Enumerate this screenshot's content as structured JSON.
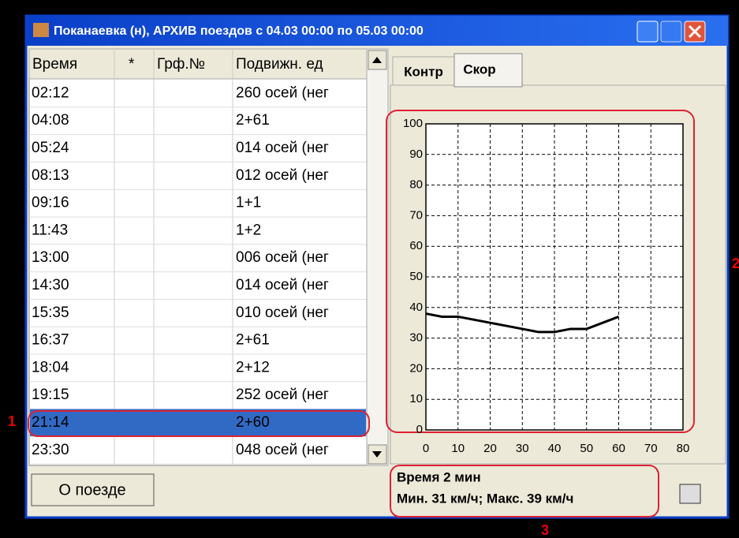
{
  "window": {
    "title": "Поканаевка (н), АРХИВ поездов с 04.03 00:00 по 05.03 00:00"
  },
  "table": {
    "columns": [
      "Время",
      "*",
      "Грф.№",
      "Подвижн. ед"
    ],
    "rows": [
      [
        "02:12",
        "260 осей (нег"
      ],
      [
        "04:08",
        "2+61"
      ],
      [
        "05:24",
        "014 осей (нег"
      ],
      [
        "08:13",
        "012 осей (нег"
      ],
      [
        "09:16",
        "1+1"
      ],
      [
        "11:43",
        "1+2"
      ],
      [
        "13:00",
        "006 осей (нег"
      ],
      [
        "14:30",
        "014 осей (нег"
      ],
      [
        "15:35",
        "010 осей (нег"
      ],
      [
        "16:37",
        "2+61"
      ],
      [
        "18:04",
        "2+12"
      ],
      [
        "19:15",
        "252 осей (нег"
      ],
      [
        "21:14",
        "2+60"
      ],
      [
        "23:30",
        "048 осей (нег"
      ]
    ],
    "selected_row": 12
  },
  "button": "О поезде",
  "tabs": [
    "Контр",
    "Скор"
  ],
  "chart_data": {
    "type": "line",
    "x": [
      0,
      5,
      10,
      15,
      20,
      25,
      30,
      35,
      40,
      45,
      50,
      55,
      60
    ],
    "values": [
      38,
      37,
      37,
      36,
      35,
      34,
      33,
      32,
      32,
      33,
      33,
      35,
      37
    ],
    "color": "#000000",
    "xlim": [
      0,
      80
    ],
    "xticks": [
      0,
      10,
      20,
      30,
      40,
      50,
      60,
      70,
      80
    ],
    "ylim": [
      0,
      100
    ],
    "yticks": [
      0,
      10,
      20,
      30,
      40,
      50,
      60,
      70,
      80,
      90,
      100
    ],
    "grid": true
  },
  "info": [
    "Время 2 мин",
    "Мин. 31 км/ч; Макс. 39 км/ч"
  ],
  "annotations": [
    "1",
    "2",
    "3"
  ]
}
